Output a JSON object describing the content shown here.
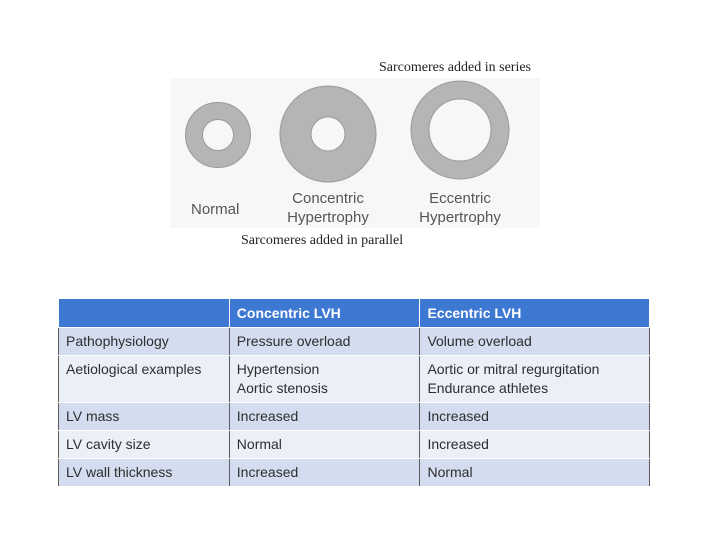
{
  "captions": {
    "series": "Sarcomeres added in series",
    "parallel": "Sarcomeres added in parallel"
  },
  "rings": [
    {
      "label_lines": [
        "Normal"
      ]
    },
    {
      "label_lines": [
        "Concentric",
        "Hypertrophy"
      ]
    },
    {
      "label_lines": [
        "Eccentric",
        "Hypertrophy"
      ]
    }
  ],
  "colors": {
    "ring_fill": "#b5b5b5",
    "ring_stroke": "#8c8c8c",
    "header_bg": "#3d78d2",
    "row_odd": "#d3ddef",
    "row_even": "#eaeff8"
  },
  "table": {
    "headers": [
      "",
      "Concentric LVH",
      "Eccentric LVH"
    ],
    "rows": [
      {
        "label": "Pathophysiology",
        "concentric": [
          "Pressure overload"
        ],
        "eccentric": [
          "Volume overload"
        ]
      },
      {
        "label": "Aetiological examples",
        "concentric": [
          "Hypertension",
          "Aortic stenosis"
        ],
        "eccentric": [
          "Aortic or mitral regurgitation",
          "Endurance athletes"
        ]
      },
      {
        "label": "LV mass",
        "concentric": [
          "Increased"
        ],
        "eccentric": [
          "Increased"
        ]
      },
      {
        "label": "LV cavity size",
        "concentric": [
          "Normal"
        ],
        "eccentric": [
          "Increased"
        ]
      },
      {
        "label": "LV wall thickness",
        "concentric": [
          "Increased"
        ],
        "eccentric": [
          "Normal"
        ]
      }
    ]
  }
}
